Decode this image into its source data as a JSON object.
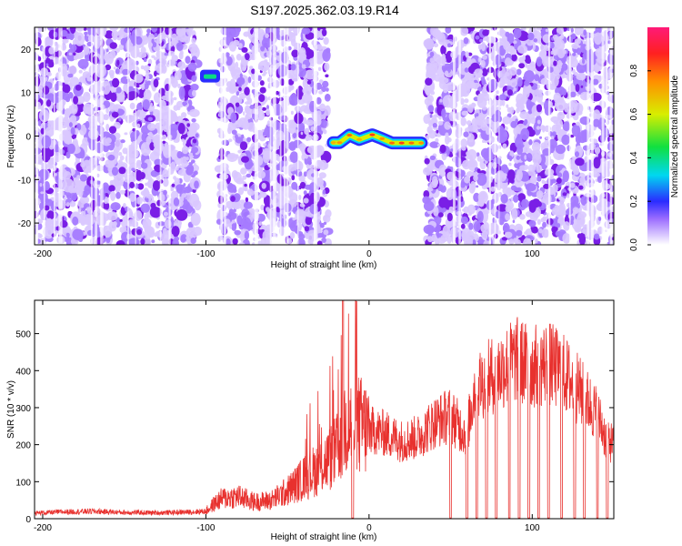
{
  "title": "S197.2025.362.03.19.R14",
  "chart_data": [
    {
      "type": "heatmap",
      "xlabel": "Height of straight line (km)",
      "ylabel": "Frequency (Hz)",
      "xlim": [
        -205,
        150
      ],
      "ylim": [
        -25,
        25
      ],
      "xticks": [
        -200,
        -100,
        0,
        100
      ],
      "xtick_labels": [
        "-200",
        "-100",
        "0",
        "100"
      ],
      "yticks": [
        20,
        10,
        0,
        -10,
        -20
      ],
      "ytick_labels": [
        "20",
        "10",
        "0",
        "-10",
        "-20"
      ],
      "colorbar": {
        "label": "Normalized spectral amplitude",
        "range": [
          0,
          1
        ],
        "ticks": [
          0.0,
          0.2,
          0.4,
          0.6,
          0.8
        ],
        "tick_labels": [
          "0.0",
          "0.2",
          "0.4",
          "0.6",
          "0.8"
        ]
      },
      "noise_regions_x": [
        [
          -205,
          -105
        ],
        [
          -92,
          -25
        ],
        [
          35,
          150
        ]
      ],
      "signal_track": [
        {
          "x": -22,
          "y": -1.5,
          "v": 0.7
        },
        {
          "x": -18,
          "y": -1.5,
          "v": 0.75
        },
        {
          "x": -12,
          "y": 0.2,
          "v": 0.8
        },
        {
          "x": -6,
          "y": -0.8,
          "v": 0.7
        },
        {
          "x": 2,
          "y": 0.3,
          "v": 0.85
        },
        {
          "x": 8,
          "y": -0.6,
          "v": 0.75
        },
        {
          "x": 14,
          "y": -1.6,
          "v": 0.8
        },
        {
          "x": 20,
          "y": -1.6,
          "v": 0.85
        },
        {
          "x": 26,
          "y": -1.6,
          "v": 0.8
        },
        {
          "x": 32,
          "y": -1.6,
          "v": 0.75
        }
      ],
      "hot_spot": {
        "x": -98,
        "y": 14,
        "v": 0.4
      }
    },
    {
      "type": "line",
      "xlabel": "Height of straight line (km)",
      "ylabel": "SNR (10 * v/v)",
      "xlim": [
        -205,
        150
      ],
      "ylim": [
        0,
        590
      ],
      "xticks": [
        -200,
        -100,
        0,
        100
      ],
      "xtick_labels": [
        "-200",
        "-100",
        "0",
        "100"
      ],
      "yticks": [
        0,
        100,
        200,
        300,
        400,
        500
      ],
      "ytick_labels": [
        "0",
        "100",
        "200",
        "300",
        "400",
        "500"
      ],
      "color": "#e8312e",
      "series": [
        {
          "x": [
            -205,
            -190,
            -170,
            -150,
            -130,
            -110,
            -100,
            -95,
            -90,
            -80,
            -70,
            -60,
            -50,
            -40,
            -30,
            -20,
            -15,
            -10,
            -5,
            0,
            10,
            20,
            30,
            40,
            50,
            55,
            60,
            65,
            70,
            80,
            90,
            100,
            110,
            120,
            130,
            140,
            145,
            150
          ],
          "y": [
            15,
            18,
            20,
            17,
            16,
            18,
            20,
            40,
            55,
            60,
            45,
            50,
            75,
            110,
            140,
            180,
            250,
            260,
            250,
            240,
            230,
            210,
            220,
            260,
            280,
            250,
            230,
            360,
            370,
            400,
            430,
            410,
            420,
            390,
            340,
            280,
            220,
            200
          ]
        }
      ],
      "dropout_x": [
        -10,
        50,
        60,
        66,
        72,
        78,
        86,
        92,
        98,
        104,
        110,
        118,
        126,
        132,
        140,
        146
      ]
    }
  ]
}
